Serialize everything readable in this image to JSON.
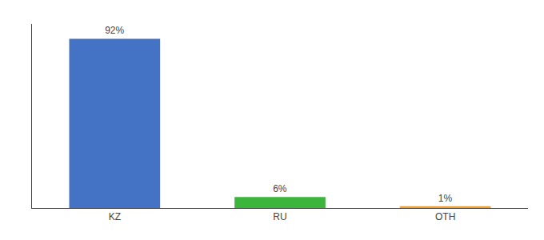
{
  "chart_data": {
    "type": "bar",
    "categories": [
      "KZ",
      "RU",
      "OTH"
    ],
    "values": [
      92,
      6,
      1
    ],
    "value_labels": [
      "92%",
      "6%",
      "1%"
    ],
    "colors": [
      "#4472c4",
      "#3cb53c",
      "#f0a030"
    ],
    "ylim": [
      0,
      100
    ],
    "yticks": [],
    "grid": false,
    "tick_labels": "x",
    "data_labels": true
  }
}
